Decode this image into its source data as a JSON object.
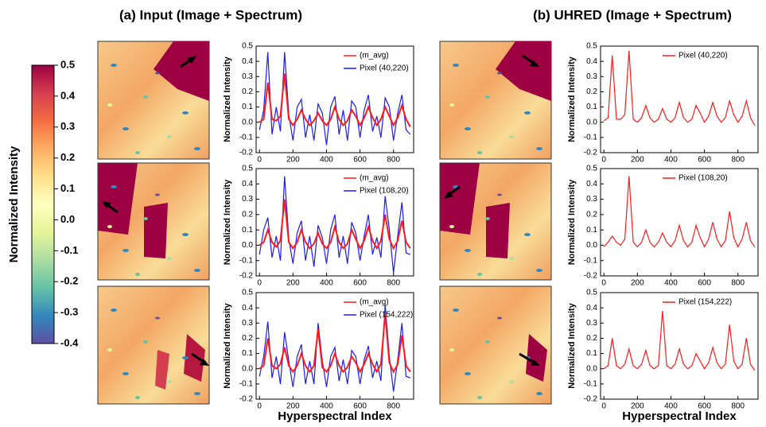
{
  "headings": [
    "(a) Input (Image + Spectrum)",
    "(b) UHRED (Image + Spectrum)"
  ],
  "colorbar": {
    "title": "Normalized Intensity",
    "ylim": [
      -0.4,
      0.5
    ],
    "yticks": [
      0.5,
      0.4,
      0.3,
      0.2,
      0.1,
      {
        "value": 0,
        "label": "0.0"
      },
      -0.1,
      -0.2,
      -0.3,
      -0.4
    ]
  },
  "chart_data": [
    {
      "type": "line",
      "ylabel": "Normalized Intensity",
      "xlim": [
        -20,
        920
      ],
      "ylim": [
        -0.2,
        0.5
      ],
      "xticks": [
        0,
        200,
        400,
        600,
        800
      ],
      "yticks": [
        0.5,
        0.4,
        0.3,
        0.2,
        0.1,
        {
          "value": 0,
          "label": "0.0"
        },
        -0.1,
        -0.2
      ],
      "x": [
        0,
        25,
        50,
        75,
        100,
        125,
        150,
        175,
        200,
        225,
        250,
        275,
        300,
        325,
        350,
        375,
        400,
        425,
        450,
        475,
        500,
        525,
        550,
        575,
        600,
        625,
        650,
        675,
        700,
        725,
        750,
        775,
        800,
        825,
        850,
        875,
        900
      ],
      "series": [
        {
          "name": "(m_avg)",
          "color": "#ff1a1a",
          "values": [
            0.0,
            0.02,
            0.26,
            0.02,
            0.01,
            0.04,
            0.32,
            0.02,
            -0.02,
            0.02,
            0.08,
            0.02,
            -0.02,
            0.01,
            0.06,
            0.01,
            -0.02,
            0.02,
            0.1,
            0.02,
            -0.02,
            0.01,
            0.08,
            0.04,
            -0.02,
            0.03,
            0.1,
            0.03,
            -0.02,
            0.02,
            0.1,
            0.04,
            -0.02,
            0.03,
            0.11,
            0.02,
            -0.03
          ]
        },
        {
          "name": "Pixel (40,220)",
          "color": "#1a1aff",
          "values": [
            -0.05,
            0.08,
            0.46,
            -0.08,
            0.1,
            -0.06,
            0.46,
            0.05,
            -0.12,
            0.1,
            0.15,
            -0.1,
            0.05,
            -0.12,
            0.12,
            0.06,
            -0.15,
            0.1,
            0.17,
            -0.08,
            0.08,
            -0.12,
            0.14,
            0.1,
            -0.1,
            0.08,
            0.18,
            -0.06,
            0.04,
            -0.1,
            0.16,
            0.1,
            -0.12,
            0.06,
            0.18,
            -0.05,
            -0.08
          ]
        }
      ]
    },
    {
      "type": "line",
      "ylabel": "Normalized Intensity",
      "xlim": [
        -20,
        920
      ],
      "ylim": [
        -0.2,
        0.5
      ],
      "xticks": [
        0,
        200,
        400,
        600,
        800
      ],
      "yticks": [
        0.5,
        0.4,
        0.3,
        0.2,
        0.1,
        {
          "value": 0,
          "label": "0.0"
        },
        -0.1,
        -0.2
      ],
      "x": [
        0,
        25,
        50,
        75,
        100,
        125,
        150,
        175,
        200,
        225,
        250,
        275,
        300,
        325,
        350,
        375,
        400,
        425,
        450,
        475,
        500,
        525,
        550,
        575,
        600,
        625,
        650,
        675,
        700,
        725,
        750,
        775,
        800,
        825,
        850,
        875,
        900
      ],
      "series": [
        {
          "name": "(m_avg)",
          "color": "#ff1a1a",
          "values": [
            0.0,
            0.02,
            0.1,
            0.02,
            -0.01,
            0.03,
            0.3,
            0.02,
            -0.02,
            0.02,
            0.1,
            0.02,
            -0.02,
            0.01,
            0.08,
            0.01,
            -0.02,
            0.02,
            0.12,
            0.02,
            -0.02,
            0.01,
            0.1,
            0.04,
            -0.02,
            0.03,
            0.12,
            0.03,
            -0.02,
            0.03,
            0.2,
            0.04,
            -0.02,
            0.03,
            0.16,
            0.02,
            -0.02
          ]
        },
        {
          "name": "Pixel (108,20)",
          "color": "#1a1aff",
          "values": [
            -0.06,
            0.1,
            0.18,
            -0.08,
            0.06,
            -0.1,
            0.45,
            0.04,
            -0.12,
            0.08,
            0.16,
            -0.1,
            0.06,
            -0.14,
            0.13,
            0.05,
            -0.12,
            0.1,
            0.2,
            -0.08,
            0.06,
            -0.12,
            0.15,
            0.08,
            -0.1,
            0.06,
            0.2,
            -0.06,
            0.05,
            -0.08,
            0.32,
            0.1,
            -0.18,
            0.06,
            0.28,
            -0.05,
            -0.06
          ]
        }
      ]
    },
    {
      "type": "line",
      "ylabel": "Normalized Intensity",
      "xlabel": "Hyperspectral Index",
      "xlim": [
        -20,
        920
      ],
      "ylim": [
        -0.2,
        0.5
      ],
      "xticks": [
        0,
        200,
        400,
        600,
        800
      ],
      "yticks": [
        0.5,
        0.4,
        0.3,
        0.2,
        0.1,
        {
          "value": 0,
          "label": "0.0"
        },
        -0.1,
        -0.2
      ],
      "x": [
        0,
        25,
        50,
        75,
        100,
        125,
        150,
        175,
        200,
        225,
        250,
        275,
        300,
        325,
        350,
        375,
        400,
        425,
        450,
        475,
        500,
        525,
        550,
        575,
        600,
        625,
        650,
        675,
        700,
        725,
        750,
        775,
        800,
        825,
        850,
        875,
        900
      ],
      "series": [
        {
          "name": "(m_avg)",
          "color": "#ff1a1a",
          "values": [
            0.0,
            0.02,
            0.2,
            0.02,
            0.0,
            0.03,
            0.14,
            0.02,
            -0.02,
            0.02,
            0.1,
            0.02,
            -0.02,
            0.02,
            0.26,
            0.01,
            -0.02,
            0.02,
            0.1,
            0.02,
            -0.02,
            0.01,
            0.08,
            0.04,
            -0.02,
            0.03,
            0.1,
            0.03,
            -0.02,
            0.03,
            0.36,
            0.04,
            -0.02,
            0.03,
            0.22,
            0.02,
            -0.02
          ]
        },
        {
          "name": "Pixel (154,222)",
          "color": "#1a1aff",
          "values": [
            -0.05,
            0.08,
            0.31,
            -0.06,
            0.08,
            -0.1,
            0.24,
            0.05,
            -0.12,
            0.08,
            0.16,
            -0.1,
            0.05,
            -0.1,
            0.3,
            0.05,
            -0.12,
            0.08,
            0.14,
            -0.08,
            0.06,
            -0.1,
            0.12,
            0.08,
            -0.1,
            0.06,
            0.15,
            -0.06,
            0.05,
            -0.08,
            0.42,
            0.08,
            -0.15,
            0.06,
            0.3,
            -0.05,
            -0.06
          ]
        }
      ]
    },
    {
      "type": "line",
      "ylabel": "Normalized Intensity",
      "xlim": [
        -20,
        920
      ],
      "ylim": [
        -0.2,
        0.5
      ],
      "xticks": [
        0,
        200,
        400,
        600,
        800
      ],
      "yticks": [
        0.5,
        0.4,
        0.3,
        0.2,
        0.1,
        {
          "value": 0,
          "label": "0.0"
        },
        -0.1,
        -0.2
      ],
      "x": [
        0,
        25,
        50,
        75,
        100,
        125,
        150,
        175,
        200,
        225,
        250,
        275,
        300,
        325,
        350,
        375,
        400,
        425,
        450,
        475,
        500,
        525,
        550,
        575,
        600,
        625,
        650,
        675,
        700,
        725,
        750,
        775,
        800,
        825,
        850,
        875,
        900
      ],
      "series": [
        {
          "name": "Pixel (40,220)",
          "color": "#ff1a1a",
          "values": [
            0.01,
            0.03,
            0.44,
            0.02,
            0.02,
            0.05,
            0.47,
            0.02,
            0.0,
            0.03,
            0.11,
            0.03,
            0.0,
            0.02,
            0.09,
            0.02,
            0.0,
            0.03,
            0.13,
            0.03,
            0.0,
            0.02,
            0.11,
            0.06,
            0.0,
            0.04,
            0.13,
            0.04,
            0.0,
            0.03,
            0.14,
            0.05,
            0.0,
            0.04,
            0.14,
            0.03,
            -0.02
          ]
        }
      ]
    },
    {
      "type": "line",
      "ylabel": "Normalized Intensity",
      "xlim": [
        -20,
        920
      ],
      "ylim": [
        -0.2,
        0.5
      ],
      "xticks": [
        0,
        200,
        400,
        600,
        800
      ],
      "yticks": [
        0.5,
        0.4,
        0.3,
        0.2,
        0.1,
        {
          "value": 0,
          "label": "0.0"
        },
        -0.1,
        -0.2
      ],
      "x": [
        0,
        25,
        50,
        75,
        100,
        125,
        150,
        175,
        200,
        225,
        250,
        275,
        300,
        325,
        350,
        375,
        400,
        425,
        450,
        475,
        500,
        525,
        550,
        575,
        600,
        625,
        650,
        675,
        700,
        725,
        750,
        775,
        800,
        825,
        850,
        875,
        900
      ],
      "series": [
        {
          "name": "Pixel (108,20)",
          "color": "#ff1a1a",
          "values": [
            -0.01,
            0.02,
            0.06,
            0.02,
            0.0,
            0.04,
            0.45,
            0.02,
            -0.01,
            0.02,
            0.1,
            0.02,
            -0.01,
            0.02,
            0.08,
            0.02,
            -0.01,
            0.03,
            0.13,
            0.03,
            -0.01,
            0.02,
            0.13,
            0.05,
            -0.01,
            0.04,
            0.15,
            0.04,
            -0.01,
            0.03,
            0.22,
            0.05,
            -0.01,
            0.04,
            0.15,
            0.03,
            -0.01
          ]
        }
      ]
    },
    {
      "type": "line",
      "ylabel": "Normalized Intensity",
      "xlabel": "Hyperspectral Index",
      "xlim": [
        -20,
        920
      ],
      "ylim": [
        -0.2,
        0.5
      ],
      "xticks": [
        0,
        200,
        400,
        600,
        800
      ],
      "yticks": [
        0.5,
        0.4,
        0.3,
        0.2,
        0.1,
        {
          "value": 0,
          "label": "0.0"
        },
        -0.1,
        -0.2
      ],
      "x": [
        0,
        25,
        50,
        75,
        100,
        125,
        150,
        175,
        200,
        225,
        250,
        275,
        300,
        325,
        350,
        375,
        400,
        425,
        450,
        475,
        500,
        525,
        550,
        575,
        600,
        625,
        650,
        675,
        700,
        725,
        750,
        775,
        800,
        825,
        850,
        875,
        900
      ],
      "series": [
        {
          "name": "Pixel (154,222)",
          "color": "#ff1a1a",
          "values": [
            0.0,
            0.02,
            0.2,
            0.02,
            0.0,
            0.03,
            0.13,
            0.02,
            0.0,
            0.03,
            0.12,
            0.02,
            0.0,
            0.02,
            0.38,
            0.02,
            0.0,
            0.03,
            0.13,
            0.03,
            0.0,
            0.02,
            0.1,
            0.05,
            0.0,
            0.04,
            0.14,
            0.04,
            0.0,
            0.03,
            0.29,
            0.05,
            0.0,
            0.03,
            0.2,
            0.03,
            -0.01
          ]
        }
      ]
    }
  ]
}
